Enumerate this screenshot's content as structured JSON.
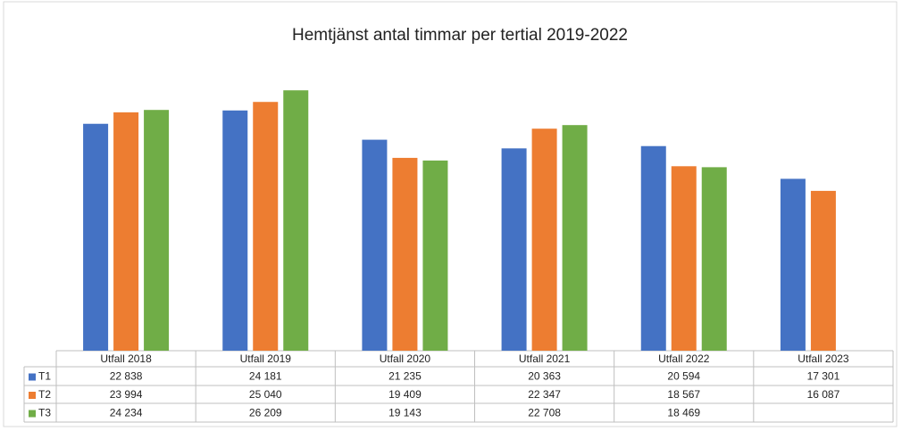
{
  "chart_data": {
    "type": "bar",
    "title": "Hemtjänst antal timmar per tertial 2019-2022",
    "categories": [
      "Utfall 2018",
      "Utfall 2019",
      "Utfall 2020",
      "Utfall 2021",
      "Utfall 2022",
      "Utfall 2023"
    ],
    "series": [
      {
        "name": "T1",
        "color": "#4472c4",
        "values": [
          22838,
          24181,
          21235,
          20363,
          20594,
          17301
        ],
        "value_labels": [
          "22 838",
          "24 181",
          "21 235",
          "20 363",
          "20 594",
          "17 301"
        ]
      },
      {
        "name": "T2",
        "color": "#ed7d31",
        "values": [
          23994,
          25040,
          19409,
          22347,
          18567,
          16087
        ],
        "value_labels": [
          "23 994",
          "25 040",
          "19 409",
          "22 347",
          "18 567",
          "16 087"
        ]
      },
      {
        "name": "T3",
        "color": "#70ad47",
        "values": [
          24234,
          26209,
          19143,
          22708,
          18469,
          null
        ],
        "value_labels": [
          "24 234",
          "26 209",
          "19 143",
          "22 708",
          "18 469",
          null
        ]
      }
    ],
    "ylim": [
      0,
      30000
    ]
  }
}
